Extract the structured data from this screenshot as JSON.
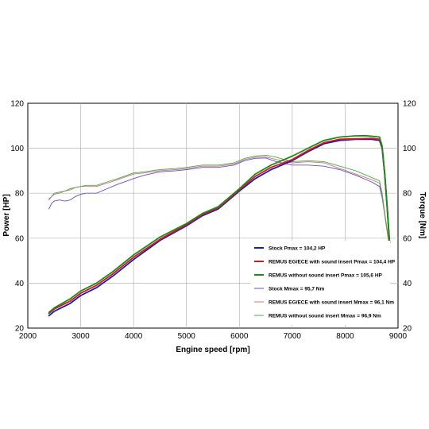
{
  "chart_data": {
    "type": "line",
    "xlabel": "Engine speed [rpm]",
    "ylabel": "Power [HP]",
    "y2label": "Torque [Nm]",
    "xlim": [
      2000,
      9000
    ],
    "ylim": [
      20,
      120
    ],
    "y2lim": [
      20,
      120
    ],
    "xticks": [
      2000,
      3000,
      4000,
      5000,
      6000,
      7000,
      8000,
      9000
    ],
    "yticks": [
      20,
      40,
      60,
      80,
      100,
      120
    ],
    "grid": true,
    "legend_position": "lower-right",
    "series": [
      {
        "name": "Stock Pmax = 104,2 HP",
        "axis": "left",
        "color": "#1c1cb4",
        "weight": "bold",
        "x": [
          2400,
          2500,
          2800,
          3000,
          3300,
          3600,
          4000,
          4500,
          5000,
          5300,
          5600,
          6000,
          6300,
          6600,
          7000,
          7300,
          7600,
          7900,
          8200,
          8500,
          8650,
          8700,
          8750,
          8800,
          8840
        ],
        "y": [
          25.5,
          27.5,
          31,
          34.5,
          38,
          43,
          50.5,
          59,
          65.5,
          70,
          73,
          81,
          86.5,
          90.5,
          94.5,
          98.5,
          102,
          103.5,
          104,
          104,
          103.5,
          100,
          88,
          72,
          58
        ]
      },
      {
        "name": "REMUS EG/ECE with sound insert Pmax = 104,4 HP",
        "axis": "left",
        "color": "#d81818",
        "weight": "bold",
        "x": [
          2400,
          2500,
          2800,
          3000,
          3300,
          3600,
          4000,
          4500,
          5000,
          5300,
          5600,
          6000,
          6300,
          6600,
          7000,
          7300,
          7600,
          7900,
          8200,
          8500,
          8650,
          8700,
          8750,
          8800,
          8840
        ],
        "y": [
          26.5,
          28.5,
          32,
          35.5,
          39,
          44,
          51.5,
          59.5,
          66,
          70.5,
          73.5,
          81.5,
          87.5,
          91.5,
          95,
          99,
          102.5,
          104,
          104.2,
          104.4,
          104,
          100.5,
          88,
          72,
          58
        ]
      },
      {
        "name": "REMUS without sound insert Pmax = 105,6 HP",
        "axis": "left",
        "color": "#1a8c1a",
        "weight": "bold",
        "x": [
          2400,
          2500,
          2800,
          3000,
          3300,
          3600,
          4000,
          4500,
          5000,
          5300,
          5600,
          6000,
          6300,
          6600,
          7000,
          7300,
          7600,
          7900,
          8200,
          8400,
          8650,
          8700,
          8750,
          8800,
          8840
        ],
        "y": [
          27,
          29,
          33,
          36.5,
          40,
          45,
          52.5,
          60.5,
          66.5,
          71,
          74,
          82,
          88.5,
          92.5,
          96.5,
          100,
          103.5,
          105,
          105.5,
          105.6,
          105,
          101,
          88,
          72,
          58
        ]
      },
      {
        "name": "Stock Mmax = 95,7 Nm",
        "axis": "right",
        "color": "#6a4cc0",
        "weight": "thin",
        "x": [
          2400,
          2450,
          2500,
          2600,
          2700,
          2800,
          2900,
          3000,
          3100,
          3300,
          3500,
          3700,
          4000,
          4200,
          4500,
          4800,
          5000,
          5300,
          5600,
          5900,
          6100,
          6300,
          6500,
          6700,
          7000,
          7300,
          7600,
          7900,
          8200,
          8500,
          8650,
          8700,
          8750,
          8800,
          8840
        ],
        "y": [
          73,
          75.5,
          76.5,
          77,
          76.5,
          77,
          78.5,
          79.5,
          80,
          80,
          82,
          84,
          86.5,
          88,
          89.5,
          90,
          90.5,
          91.5,
          91.5,
          92.5,
          94.5,
          95.5,
          95.7,
          94,
          92.5,
          92.5,
          92,
          90.5,
          88,
          85,
          83,
          78,
          70,
          62,
          56
        ]
      },
      {
        "name": "REMUS EG/ECE with sound insert Mmax = 96,1 Nm",
        "axis": "right",
        "color": "#c87878",
        "weight": "thin",
        "x": [
          2400,
          2450,
          2500,
          2600,
          2700,
          2800,
          2900,
          3000,
          3100,
          3300,
          3500,
          3700,
          4000,
          4200,
          4500,
          4800,
          5000,
          5300,
          5600,
          5900,
          6100,
          6300,
          6500,
          6700,
          7000,
          7300,
          7600,
          7900,
          8200,
          8500,
          8650,
          8700,
          8750,
          8800,
          8840
        ],
        "y": [
          77,
          78.5,
          79.5,
          80,
          81,
          81.5,
          82.5,
          83,
          83,
          83,
          84.5,
          86,
          88.5,
          89,
          90,
          90.5,
          91,
          92,
          92,
          93,
          95,
          96,
          96.1,
          95,
          93.5,
          94,
          93.5,
          91,
          88.5,
          86,
          84.5,
          79,
          70,
          62,
          56
        ]
      },
      {
        "name": "REMUS without sound insert Mmax = 96,9 Nm",
        "axis": "right",
        "color": "#4ca84c",
        "weight": "thin",
        "x": [
          2400,
          2450,
          2500,
          2600,
          2700,
          2800,
          2900,
          3000,
          3100,
          3300,
          3500,
          3700,
          4000,
          4200,
          4500,
          4800,
          5000,
          5300,
          5600,
          5900,
          6100,
          6300,
          6500,
          6700,
          7000,
          7300,
          7600,
          7900,
          8200,
          8500,
          8650,
          8700,
          8750,
          8800,
          8840
        ],
        "y": [
          77.5,
          78.5,
          80,
          80.5,
          81,
          82,
          82.5,
          83,
          83.5,
          83.5,
          85,
          86.5,
          89,
          89.5,
          90.5,
          91,
          91.5,
          92.5,
          92.5,
          93.5,
          95.5,
          96.5,
          96.9,
          96,
          94,
          94.5,
          94,
          92,
          90,
          87,
          85.5,
          80,
          71,
          63,
          57
        ]
      }
    ]
  }
}
